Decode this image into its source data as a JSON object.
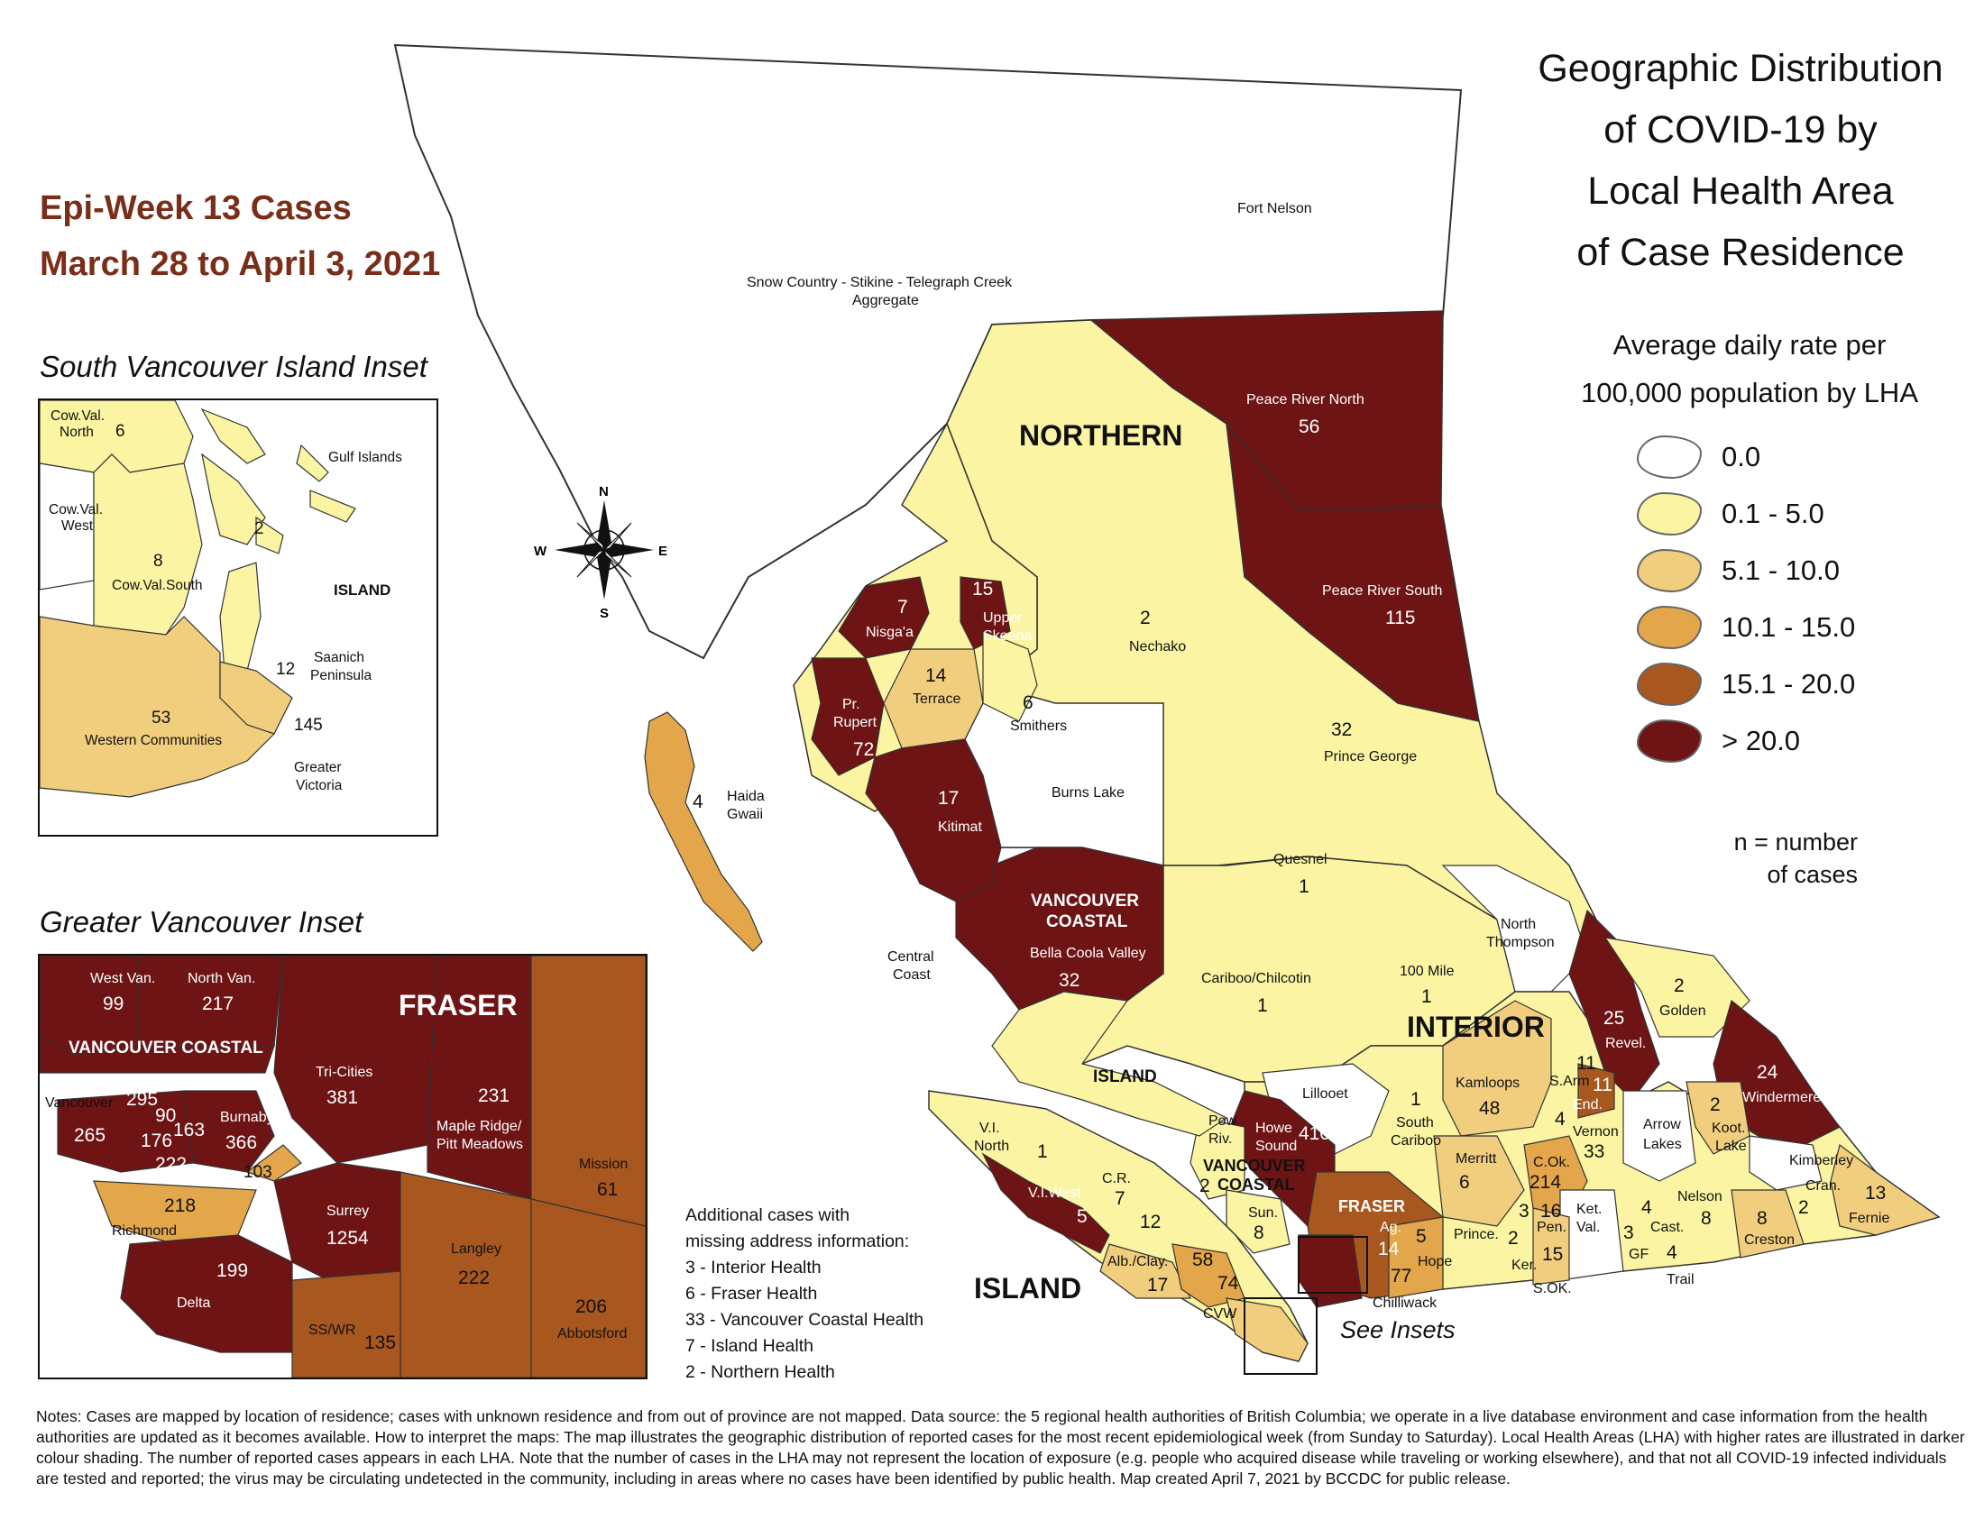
{
  "header": {
    "epi_week": "Epi-Week 13 Cases",
    "date_range": "March 28 to April 3, 2021"
  },
  "title": {
    "line1": "Geographic Distribution",
    "line2": "of COVID-19 by",
    "line3": "Local Health Area",
    "line4": "of Case Residence"
  },
  "subtitle": {
    "line1": "Average daily rate per",
    "line2": "100,000 population by LHA"
  },
  "legend": [
    {
      "label": "0.0",
      "color": "#ffffff"
    },
    {
      "label": "0.1 - 5.0",
      "color": "#fbf5a3"
    },
    {
      "label": "5.1 - 10.0",
      "color": "#f1cd7e"
    },
    {
      "label": "10.1 - 15.0",
      "color": "#e3a64a"
    },
    {
      "label": "15.1 - 20.0",
      "color": "#a8581f"
    },
    {
      "label": "> 20.0",
      "color": "#6e1414"
    }
  ],
  "n_note": {
    "line1": "n = number",
    "line2": "of cases"
  },
  "insets": {
    "south_vi_title": "South Vancouver Island Inset",
    "greater_van_title": "Greater Vancouver Inset",
    "see_insets": "See Insets"
  },
  "additional": {
    "heading1": "Additional cases with",
    "heading2": "missing address information:",
    "items": [
      "3 - Interior Health",
      "6 - Fraser Health",
      "33 - Vancouver Coastal Health",
      "7 - Island Health",
      "2 - Northern Health"
    ]
  },
  "regions": {
    "northern": "NORTHERN",
    "interior": "INTERIOR",
    "island_main": "ISLAND",
    "island_small": "ISLAND",
    "vc1": "VANCOUVER",
    "vc2": "COASTAL",
    "vcs1": "VANCOUVER",
    "vcs2": "COASTAL",
    "fraser_small": "FRASER"
  },
  "compass": {
    "n": "N",
    "s": "S",
    "e": "E",
    "w": "W"
  },
  "lha_labels": {
    "fort_nelson": "Fort Nelson",
    "snow1": "Snow Country - Stikine - Telegraph Creek",
    "snow2": "Aggregate",
    "prn_name": "Peace River North",
    "prn_n": "56",
    "prs_name": "Peace River South",
    "prs_n": "115",
    "nechako_n": "2",
    "nechako_name": "Nechako",
    "pg_n": "32",
    "pg_name": "Prince George",
    "nisga_n": "7",
    "nisga_name": "Nisga'a",
    "usk_n": "15",
    "usk_name1": "Upper",
    "usk_name2": "Skeena",
    "terrace_n": "14",
    "terrace_name": "Terrace",
    "smithers_n": "6",
    "smithers_name": "Smithers",
    "pr_name1": "Pr.",
    "pr_name2": "Rupert",
    "pr_n": "72",
    "burns_lake": "Burns Lake",
    "kitimat_n": "17",
    "kitimat_name": "Kitimat",
    "haida_n": "4",
    "haida_name1": "Haida",
    "haida_name2": "Gwaii",
    "quesnel_name": "Quesnel",
    "quesnel_n": "1",
    "bcv_name": "Bella Coola Valley",
    "bcv_n": "32",
    "central1": "Central",
    "central2": "Coast",
    "cariboo_name": "Cariboo/Chilcotin",
    "cariboo_n": "1",
    "nthompson1": "North",
    "nthompson2": "Thompson",
    "golden_n": "2",
    "golden_name": "Golden",
    "revel_n": "25",
    "revel_name": "Revel.",
    "windermere_n": "24",
    "windermere_name": "Windermere",
    "mile100_name": "100 Mile",
    "mile100_n": "1",
    "lillooet": "Lillooet",
    "kamloops_name": "Kamloops",
    "kamloops_n": "48",
    "sarm_name": "S.Arm",
    "sarm_n": "11",
    "end_n": "11",
    "end_name": "End.",
    "vernon_n": "4",
    "vernon_name": "Vernon",
    "vernon_n2": "33",
    "sc_n": "1",
    "sc_name1": "South",
    "sc_name2": "Cariboo",
    "merritt_name": "Merritt",
    "merritt_n": "6",
    "cok_name": "C.Ok.",
    "cok_n": "214",
    "arrow1": "Arrow",
    "arrow2": "Lakes",
    "koot_n": "2",
    "koot_name1": "Koot.",
    "koot_name2": "Lake",
    "kimberley": "Kimberley",
    "cran_name": "Cran.",
    "cran_n": "2",
    "fernie_n": "13",
    "fernie_name": "Fernie",
    "howe_name1": "Howe",
    "howe_name2": "Sound",
    "howe_n": "410",
    "powriv1": "Pow.",
    "powriv2": "Riv.",
    "powriv_n": "2",
    "sun_name": "Sun.",
    "sun_n": "8",
    "vin_name1": "V.I.",
    "vin_name2": "North",
    "vin_n": "1",
    "viw_name": "V.I.West",
    "viw_n": "5",
    "cr_name": "C.R.",
    "cr_n": "7",
    "n12": "12",
    "alb_name": "Alb./Clay.",
    "alb_n": "17",
    "n58": "58",
    "n74": "74",
    "cvw": "CVW",
    "ag_name": "Ag.",
    "ag_n": "14",
    "n5_ag": "5",
    "hope_name": "Hope",
    "hope_n": "77",
    "chilliwack": "Chilliwack",
    "prince_name": "Prince.",
    "prince_n": "2",
    "n3_ker": "3",
    "ker_name": "Ker.",
    "pen_n": "16",
    "pen_name": "Pen.",
    "pen_n2": "15",
    "ket1": "Ket.",
    "ket2": "Val.",
    "sok": "S.OK.",
    "gf_n": "3",
    "gf_name": "GF",
    "cast_n": "4",
    "cast_name": "Cast.",
    "trail_n": "4",
    "trail_name": "Trail",
    "nelson_name": "Nelson",
    "nelson_n": "8",
    "creston_n": "8",
    "creston_name": "Creston"
  },
  "svi": {
    "cvn1": "Cow.Val.",
    "cvn2": "North",
    "cvn_n": "6",
    "gulf": "Gulf Islands",
    "cvw1": "Cow.Val.",
    "cvw2": "West",
    "gulf_n": "2",
    "cvs_n": "8",
    "cvs_name": "Cow.Val.South",
    "island": "ISLAND",
    "sp1": "Saanich",
    "sp2": "Peninsula",
    "sp_n": "12",
    "wc_n": "53",
    "wc_name": "Western Communities",
    "gv_n": "145",
    "gv1": "Greater",
    "gv2": "Victoria"
  },
  "gvi": {
    "westvan_name": "West Van.",
    "westvan_n": "99",
    "northvan_name": "North Van.",
    "northvan_n": "217",
    "fraser": "FRASER",
    "vc": "VANCOUVER COASTAL",
    "tricities_name": "Tri-Cities",
    "tricities_n": "381",
    "mr_n": "231",
    "mr1": "Maple Ridge/",
    "mr2": "Pitt Meadows",
    "vancouver": "Vancouver",
    "n295": "295",
    "n90": "90",
    "n265": "265",
    "n176": "176",
    "n163": "163",
    "n222a": "222",
    "burnaby_name": "Burnaby",
    "burnaby_n": "366",
    "n103": "103",
    "mission_name": "Mission",
    "mission_n": "61",
    "richmond_n": "218",
    "richmond_name": "Richmond",
    "surrey_name": "Surrey",
    "surrey_n": "1254",
    "langley_name": "Langley",
    "langley_n": "222",
    "delta_n": "199",
    "delta_name": "Delta",
    "abbotsford_n": "206",
    "abbotsford_name": "Abbotsford",
    "sswr_name": "SS/WR",
    "sswr_n": "135"
  },
  "notes": "Notes: Cases are mapped by location of residence; cases with unknown residence and from out of province are not mapped. Data source: the 5 regional health authorities of British Columbia; we operate in a live database environment and case information from the health authorities are updated as it becomes available. How to interpret the maps: The map illustrates the geographic distribution of reported cases for the most recent epidemiological week (from Sunday to Saturday). Local Health Areas (LHA) with higher rates are illustrated in darker colour shading. The number of reported cases appears in each LHA. Note that the number of cases in the LHA may not represent the location of exposure (e.g. people who acquired disease while traveling or working elsewhere), and that not all COVID-19 infected individuals are tested and reported; the virus may be circulating undetected in the community, including in areas where no cases have been identified by public health. Map created April 7, 2021 by BCCDC for public release."
}
